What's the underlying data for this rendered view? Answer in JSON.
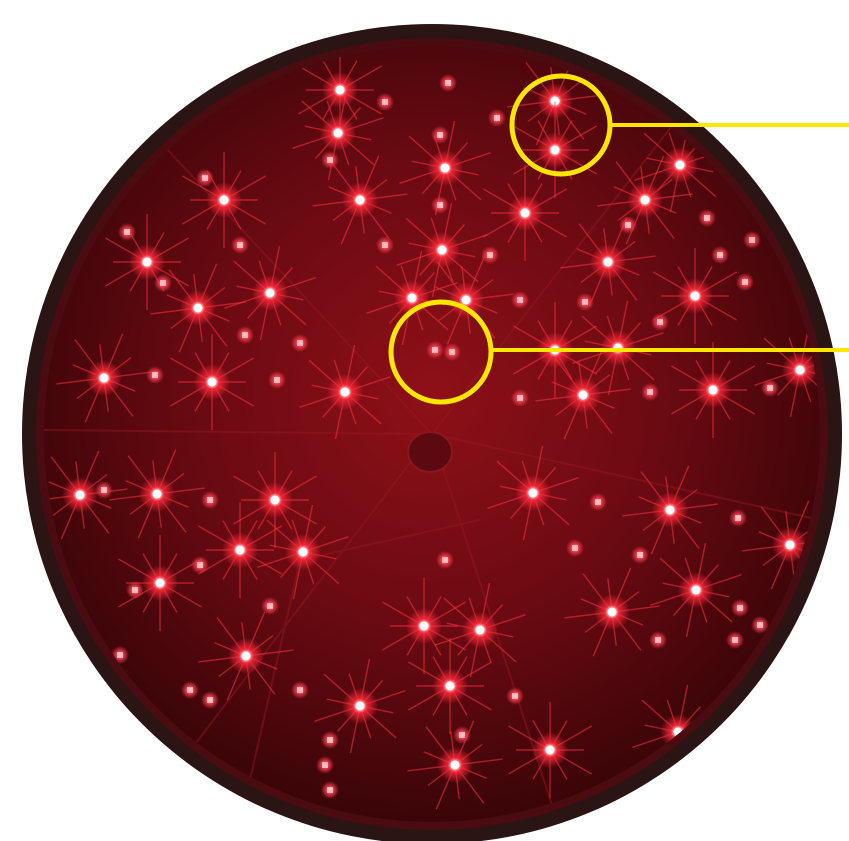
{
  "figure": {
    "subject": "red-led-signal-lamp",
    "colors": {
      "background": "#ffffff",
      "rim": "#2a1414",
      "lens_dark": "#3a0508",
      "lens_mid": "#7a0d14",
      "led_core": "#ffffff",
      "led_glow": "#ff2a3a",
      "led_dim": "#ff6a78",
      "callout": "#ffe600"
    },
    "callouts": [
      {
        "name": "callout-lit-led-pair"
      },
      {
        "name": "callout-dim-led-pair"
      }
    ]
  }
}
